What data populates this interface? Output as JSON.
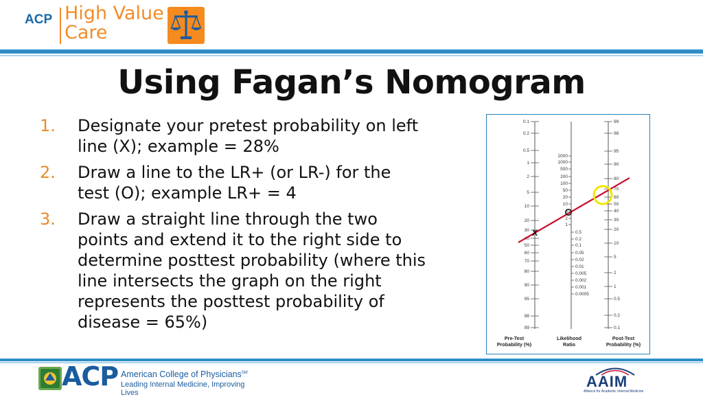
{
  "header": {
    "acp_small": "ACP",
    "brand_line1": "High Value",
    "brand_line2": "Care",
    "scale_icon": "balance-scale-icon"
  },
  "title": "Using Fagan’s Nomogram",
  "steps": [
    {
      "num": "1.",
      "text": "Designate your pretest probability on left line (X); example = 28%"
    },
    {
      "num": "2.",
      "text": "Draw a line to the LR+ (or LR-) for the test (O); example LR+ = 4"
    },
    {
      "num": "3.",
      "text": "Draw a straight line through the two points and extend it to the right side to determine posttest probability (where this line intersects the graph on the right represents the posttest probability of disease = 65%)"
    }
  ],
  "nomogram": {
    "pretest_ticks": [
      "0.1",
      "0.2",
      "0.5",
      "1",
      "2",
      "5",
      "10",
      "20",
      "30",
      "40",
      "50",
      "60",
      "70",
      "80",
      "90",
      "95",
      "98",
      "99"
    ],
    "lr_ticks_upper": [
      "2000",
      "1000",
      "500",
      "200",
      "100",
      "50",
      "20",
      "10",
      "5",
      "2",
      "1"
    ],
    "lr_ticks_lower": [
      "0.5",
      "0.2",
      "0.1",
      "0.05",
      "0.02",
      "0.01",
      "0.005",
      "0.002",
      "0.001",
      "0.0005"
    ],
    "posttest_ticks": [
      "99",
      "98",
      "95",
      "90",
      "80",
      "70",
      "60",
      "50",
      "40",
      "30",
      "20",
      "10",
      "5",
      "2",
      "1",
      "0.5",
      "0.2",
      "0.1"
    ],
    "labels": {
      "pretest_1": "Pre-Test",
      "pretest_2": "Probability (%)",
      "lr_1": "Likelihood",
      "lr_2": "Ratio",
      "posttest_1": "Post-Test",
      "posttest_2": "Probability (%)"
    },
    "marker_x": "X",
    "marker_o": "O",
    "line_color": "#c8102e",
    "highlight_color": "#f2e600"
  },
  "footer": {
    "acp": "ACP",
    "org_name": "American College of Physicians",
    "org_mark": "SM",
    "tagline": "Leading Internal Medicine, Improving Lives",
    "aaim": "AAIM",
    "aaim_sub": "Alliance for Academic Internal Medicine"
  },
  "colors": {
    "accent_orange": "#f28c28",
    "accent_blue": "#2e8fc7",
    "acp_blue": "#1a5c9e"
  }
}
